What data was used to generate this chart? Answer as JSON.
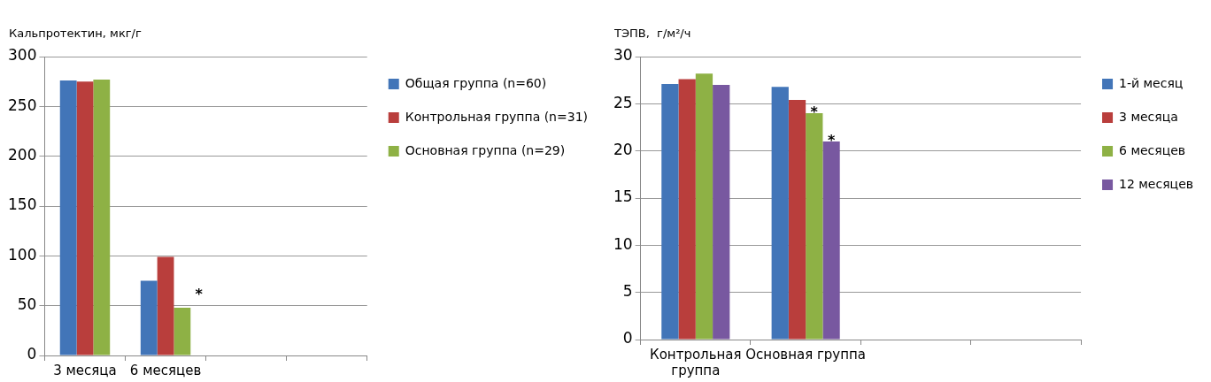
{
  "chart_data": [
    {
      "type": "bar",
      "ylabel": "Кальпротектин, мкг/г",
      "categories": [
        "3 месяца",
        "6 месяцев",
        null,
        null
      ],
      "series": [
        {
          "name": "Общая группа (n=60)",
          "color": "#4275b8",
          "values": [
            276,
            75,
            null,
            null
          ]
        },
        {
          "name": "Контрольная группа (n=31)",
          "color": "#b93e3c",
          "values": [
            275,
            99,
            null,
            null
          ]
        },
        {
          "name": "Основная группа (n=29)",
          "color": "#8eb145",
          "values": [
            277,
            48,
            null,
            null
          ]
        }
      ],
      "ylim": [
        0,
        300
      ],
      "yticks": [
        0,
        50,
        100,
        150,
        200,
        250,
        300
      ],
      "grid": "y",
      "legend": "top right",
      "annotations": [
        "*"
      ]
    },
    {
      "type": "bar",
      "ylabel": "ТЭПВ,  г/м²/ч",
      "categories": [
        "Контрольная группа",
        "Основная группа",
        null,
        null
      ],
      "series": [
        {
          "name": "1-й месяц",
          "color": "#4275b8",
          "values": [
            27.1,
            26.8,
            null,
            null
          ]
        },
        {
          "name": "3 месяца",
          "color": "#b93e3c",
          "values": [
            27.6,
            25.4,
            null,
            null
          ]
        },
        {
          "name": "6 месяцев",
          "color": "#8eb145",
          "values": [
            28.2,
            24.0,
            null,
            null
          ]
        },
        {
          "name": "12 месяцев",
          "color": "#7858a0",
          "values": [
            27.0,
            21.0,
            null,
            null
          ]
        }
      ],
      "ylim": [
        0,
        30
      ],
      "yticks": [
        0,
        5,
        10,
        15,
        20,
        25,
        30
      ],
      "grid": "y",
      "legend": "top right",
      "annotations": [
        {
          "text": "*",
          "x": "Основная группа",
          "y": 24.0
        },
        {
          "text": "*",
          "x": "Основная группа",
          "y": 21.0
        }
      ]
    }
  ]
}
